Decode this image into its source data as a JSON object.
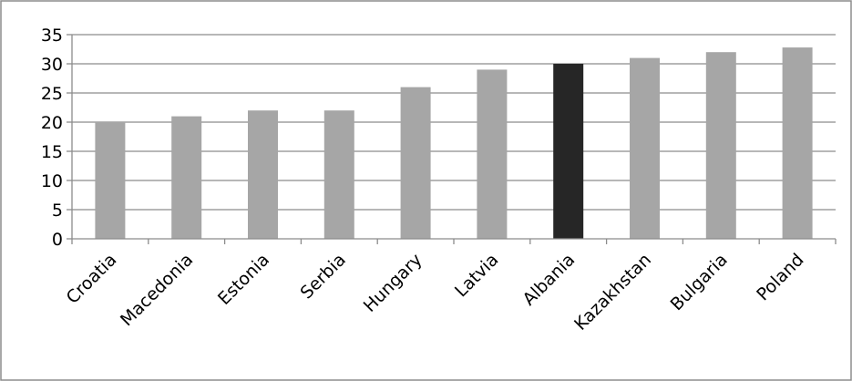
{
  "chart_data": {
    "type": "bar",
    "title": "",
    "xlabel": "",
    "ylabel": "",
    "categories": [
      "Croatia",
      "Macedonia",
      "Estonia",
      "Serbia",
      "Hungary",
      "Latvia",
      "Albania",
      "Kazakhstan",
      "Bulgaria",
      "Poland"
    ],
    "values": [
      20,
      21,
      22,
      22,
      26,
      29,
      30,
      31,
      32,
      32.8
    ],
    "highlight_category": "Albania",
    "ylim": [
      0,
      35
    ],
    "yticks": [
      0,
      5,
      10,
      15,
      20,
      25,
      30,
      35
    ],
    "grid": true,
    "legend": "none",
    "colors": {
      "bar": "#a6a6a6",
      "highlight_bar": "#262626",
      "grid": "#8c8c8c",
      "axis": "#8c8c8c",
      "frame": "#8c8c8c"
    }
  }
}
